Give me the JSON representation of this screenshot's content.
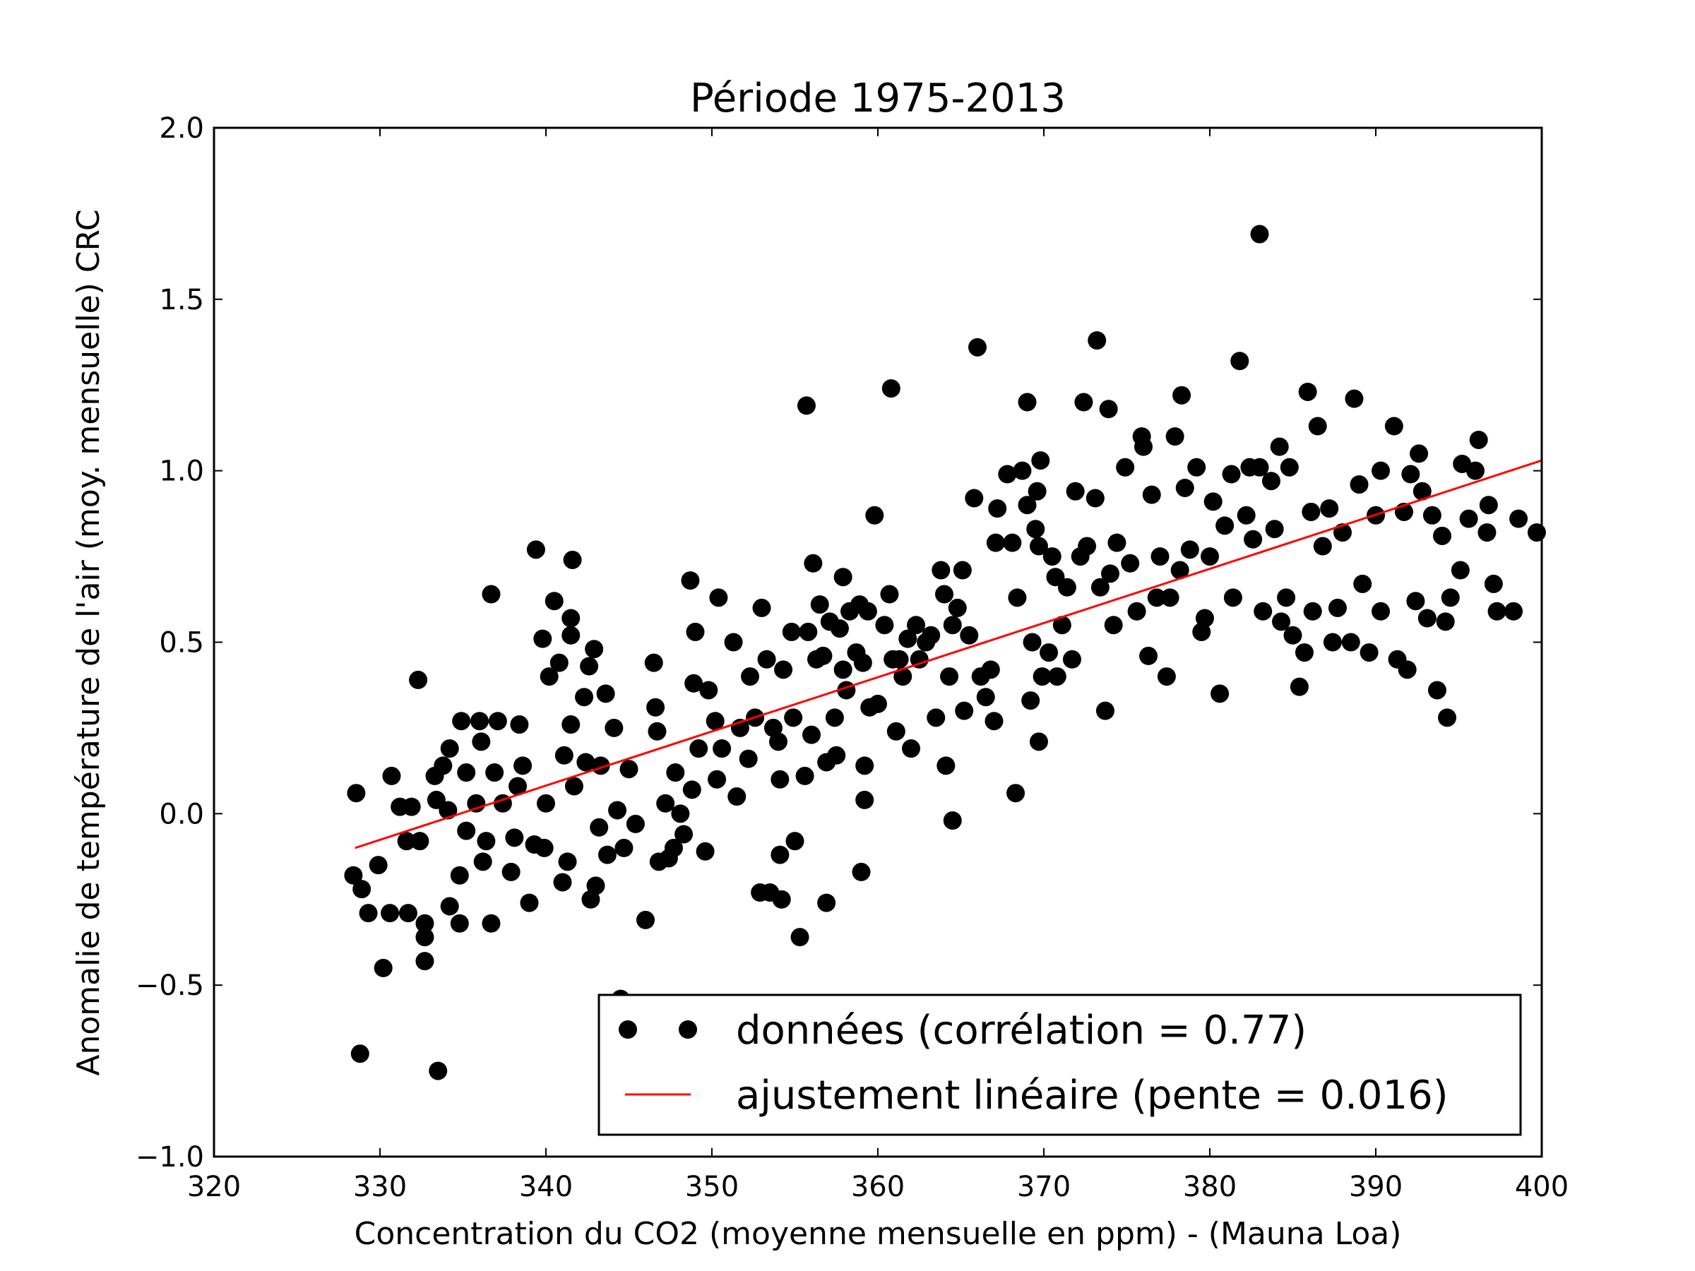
{
  "chart_data": {
    "type": "scatter",
    "title": "Période 1975-2013",
    "xlabel": "Concentration du CO2 (moyenne mensuelle en ppm) -  (Mauna Loa)",
    "ylabel": "Anomalie de température de l'air (moy. mensuelle) CRC",
    "xlim": [
      320,
      400
    ],
    "ylim": [
      -1.0,
      2.0
    ],
    "xticks": [
      "320",
      "330",
      "340",
      "350",
      "360",
      "370",
      "380",
      "390",
      "400"
    ],
    "yticks": [
      "−1.0",
      "−0.5",
      "0.0",
      "0.5",
      "1.0",
      "1.5",
      "2.0"
    ],
    "grid": false,
    "legend_position": "bottom-right",
    "colors": {
      "points": "#000000",
      "fit": "#ff0000"
    },
    "series": [
      {
        "name": "données (corrélation = 0.77)",
        "type": "scatter",
        "points": [
          [
            328.57,
            0.06
          ],
          [
            328.4,
            -0.18
          ],
          [
            328.9,
            -0.22
          ],
          [
            328.8,
            -0.7
          ],
          [
            333.5,
            -0.75
          ],
          [
            330.2,
            -0.45
          ],
          [
            332.7,
            -0.43
          ],
          [
            332.7,
            -0.36
          ],
          [
            329.9,
            -0.15
          ],
          [
            329.3,
            -0.29
          ],
          [
            330.6,
            -0.29
          ],
          [
            331.7,
            -0.29
          ],
          [
            332.7,
            -0.32
          ],
          [
            334.2,
            -0.27
          ],
          [
            334.8,
            -0.32
          ],
          [
            334.8,
            -0.18
          ],
          [
            332.3,
            0.39
          ],
          [
            330.7,
            0.11
          ],
          [
            331.2,
            0.02
          ],
          [
            331.9,
            0.02
          ],
          [
            331.6,
            -0.08
          ],
          [
            332.4,
            -0.08
          ],
          [
            333.3,
            0.11
          ],
          [
            333.8,
            0.14
          ],
          [
            334.2,
            0.19
          ],
          [
            333.4,
            0.04
          ],
          [
            334.1,
            0.01
          ],
          [
            334.9,
            0.27
          ],
          [
            335.2,
            0.12
          ],
          [
            335.2,
            -0.05
          ],
          [
            336.0,
            0.27
          ],
          [
            336.1,
            0.21
          ],
          [
            335.8,
            0.03
          ],
          [
            336.2,
            -0.14
          ],
          [
            336.4,
            -0.08
          ],
          [
            336.7,
            -0.32
          ],
          [
            336.7,
            0.64
          ],
          [
            337.1,
            0.27
          ],
          [
            336.9,
            0.12
          ],
          [
            337.4,
            0.03
          ],
          [
            337.9,
            -0.17
          ],
          [
            338.1,
            -0.07
          ],
          [
            338.4,
            0.26
          ],
          [
            338.6,
            0.14
          ],
          [
            338.3,
            0.08
          ],
          [
            339.0,
            -0.26
          ],
          [
            339.3,
            -0.09
          ],
          [
            339.4,
            0.77
          ],
          [
            339.8,
            0.51
          ],
          [
            340.2,
            0.4
          ],
          [
            340.0,
            0.03
          ],
          [
            339.9,
            -0.1
          ],
          [
            340.5,
            0.62
          ],
          [
            340.8,
            0.44
          ],
          [
            341.1,
            0.17
          ],
          [
            341.0,
            -0.2
          ],
          [
            341.3,
            -0.14
          ],
          [
            341.5,
            0.52
          ],
          [
            341.5,
            0.57
          ],
          [
            341.6,
            0.74
          ],
          [
            341.5,
            0.26
          ],
          [
            341.7,
            0.08
          ],
          [
            342.3,
            0.34
          ],
          [
            342.6,
            0.43
          ],
          [
            342.4,
            0.15
          ],
          [
            342.7,
            -0.25
          ],
          [
            342.9,
            0.48
          ],
          [
            343.0,
            -0.21
          ],
          [
            343.2,
            -0.04
          ],
          [
            343.3,
            0.14
          ],
          [
            343.6,
            0.35
          ],
          [
            343.7,
            -0.12
          ],
          [
            344.1,
            0.25
          ],
          [
            344.3,
            0.01
          ],
          [
            344.5,
            -0.54
          ],
          [
            344.7,
            -0.1
          ],
          [
            345.0,
            0.13
          ],
          [
            345.4,
            -0.03
          ],
          [
            346.0,
            -0.31
          ],
          [
            346.5,
            0.44
          ],
          [
            346.6,
            0.31
          ],
          [
            346.7,
            0.24
          ],
          [
            346.8,
            -0.14
          ],
          [
            347.2,
            0.03
          ],
          [
            347.4,
            -0.13
          ],
          [
            347.7,
            -0.1
          ],
          [
            347.8,
            0.12
          ],
          [
            348.1,
            0.0
          ],
          [
            348.3,
            -0.06
          ],
          [
            348.7,
            0.68
          ],
          [
            348.9,
            0.38
          ],
          [
            349.0,
            0.53
          ],
          [
            349.2,
            0.19
          ],
          [
            348.8,
            0.07
          ],
          [
            349.6,
            -0.11
          ],
          [
            349.8,
            0.36
          ],
          [
            350.2,
            0.27
          ],
          [
            350.4,
            0.63
          ],
          [
            350.6,
            0.19
          ],
          [
            350.3,
            0.1
          ],
          [
            351.3,
            0.5
          ],
          [
            351.5,
            0.05
          ],
          [
            351.7,
            0.25
          ],
          [
            352.2,
            0.16
          ],
          [
            352.3,
            0.4
          ],
          [
            352.6,
            0.28
          ],
          [
            352.9,
            -0.23
          ],
          [
            353.0,
            0.6
          ],
          [
            353.3,
            0.45
          ],
          [
            353.5,
            -0.23
          ],
          [
            353.7,
            0.25
          ],
          [
            354.0,
            0.21
          ],
          [
            354.1,
            -0.12
          ],
          [
            354.1,
            0.1
          ],
          [
            354.2,
            -0.25
          ],
          [
            354.3,
            0.42
          ],
          [
            354.8,
            0.53
          ],
          [
            354.9,
            0.28
          ],
          [
            355.0,
            -0.08
          ],
          [
            355.3,
            -0.36
          ],
          [
            355.6,
            0.11
          ],
          [
            355.7,
            1.19
          ],
          [
            355.8,
            0.53
          ],
          [
            356.0,
            0.23
          ],
          [
            356.1,
            0.73
          ],
          [
            356.3,
            0.45
          ],
          [
            356.5,
            0.61
          ],
          [
            356.7,
            0.46
          ],
          [
            356.9,
            -0.26
          ],
          [
            356.9,
            0.15
          ],
          [
            357.1,
            0.56
          ],
          [
            357.4,
            0.28
          ],
          [
            357.5,
            0.17
          ],
          [
            357.7,
            0.54
          ],
          [
            357.9,
            0.42
          ],
          [
            357.9,
            0.69
          ],
          [
            358.1,
            0.36
          ],
          [
            358.3,
            0.59
          ],
          [
            358.7,
            0.47
          ],
          [
            358.9,
            0.61
          ],
          [
            359.0,
            -0.17
          ],
          [
            359.1,
            0.44
          ],
          [
            359.2,
            0.14
          ],
          [
            359.2,
            0.04
          ],
          [
            359.4,
            0.59
          ],
          [
            359.5,
            0.31
          ],
          [
            359.8,
            0.87
          ],
          [
            360.0,
            0.32
          ],
          [
            360.4,
            0.55
          ],
          [
            360.7,
            0.64
          ],
          [
            360.8,
            1.24
          ],
          [
            360.9,
            0.45
          ],
          [
            361.1,
            0.24
          ],
          [
            361.3,
            0.45
          ],
          [
            361.5,
            0.4
          ],
          [
            361.8,
            0.51
          ],
          [
            362.0,
            0.19
          ],
          [
            362.3,
            0.55
          ],
          [
            362.5,
            0.45
          ],
          [
            362.9,
            0.5
          ],
          [
            363.2,
            0.52
          ],
          [
            363.5,
            0.28
          ],
          [
            363.8,
            0.71
          ],
          [
            364.0,
            0.64
          ],
          [
            364.1,
            0.14
          ],
          [
            364.3,
            0.4
          ],
          [
            364.5,
            0.55
          ],
          [
            364.5,
            -0.02
          ],
          [
            364.8,
            0.6
          ],
          [
            365.1,
            0.71
          ],
          [
            365.2,
            0.3
          ],
          [
            365.5,
            0.52
          ],
          [
            365.8,
            0.92
          ],
          [
            366.0,
            1.36
          ],
          [
            366.2,
            0.4
          ],
          [
            366.5,
            0.34
          ],
          [
            366.8,
            0.42
          ],
          [
            367.0,
            0.27
          ],
          [
            367.1,
            0.79
          ],
          [
            367.2,
            0.89
          ],
          [
            367.8,
            0.99
          ],
          [
            368.1,
            0.79
          ],
          [
            368.3,
            0.06
          ],
          [
            368.4,
            0.63
          ],
          [
            368.7,
            1.0
          ],
          [
            369.0,
            1.2
          ],
          [
            369.0,
            0.9
          ],
          [
            369.2,
            0.33
          ],
          [
            369.3,
            0.5
          ],
          [
            369.5,
            0.83
          ],
          [
            369.6,
            0.94
          ],
          [
            369.7,
            0.78
          ],
          [
            369.7,
            0.21
          ],
          [
            369.8,
            1.03
          ],
          [
            369.9,
            0.4
          ],
          [
            370.3,
            0.47
          ],
          [
            370.5,
            0.75
          ],
          [
            370.7,
            0.69
          ],
          [
            370.8,
            0.4
          ],
          [
            371.1,
            0.55
          ],
          [
            371.4,
            0.66
          ],
          [
            371.7,
            0.45
          ],
          [
            371.9,
            0.94
          ],
          [
            372.2,
            0.75
          ],
          [
            372.4,
            1.2
          ],
          [
            372.6,
            0.78
          ],
          [
            373.1,
            0.92
          ],
          [
            373.2,
            1.38
          ],
          [
            373.4,
            0.66
          ],
          [
            373.7,
            0.3
          ],
          [
            373.9,
            1.18
          ],
          [
            374.0,
            0.7
          ],
          [
            374.2,
            0.55
          ],
          [
            374.4,
            0.79
          ],
          [
            374.9,
            1.01
          ],
          [
            375.2,
            0.73
          ],
          [
            375.6,
            0.59
          ],
          [
            375.9,
            1.1
          ],
          [
            376.0,
            1.07
          ],
          [
            376.3,
            0.46
          ],
          [
            376.5,
            0.93
          ],
          [
            376.8,
            0.63
          ],
          [
            377.0,
            0.75
          ],
          [
            377.4,
            0.4
          ],
          [
            377.6,
            0.63
          ],
          [
            377.9,
            1.1
          ],
          [
            378.2,
            0.71
          ],
          [
            378.3,
            1.22
          ],
          [
            378.5,
            0.95
          ],
          [
            378.8,
            0.77
          ],
          [
            379.2,
            1.01
          ],
          [
            379.5,
            0.53
          ],
          [
            379.7,
            0.57
          ],
          [
            380.0,
            0.75
          ],
          [
            380.2,
            0.91
          ],
          [
            380.6,
            0.35
          ],
          [
            380.9,
            0.84
          ],
          [
            381.3,
            0.99
          ],
          [
            381.4,
            0.63
          ],
          [
            381.8,
            1.32
          ],
          [
            382.2,
            0.87
          ],
          [
            382.4,
            1.01
          ],
          [
            382.6,
            0.8
          ],
          [
            383.0,
            1.69
          ],
          [
            383.0,
            1.01
          ],
          [
            383.2,
            0.59
          ],
          [
            383.7,
            0.97
          ],
          [
            383.9,
            0.83
          ],
          [
            384.2,
            1.07
          ],
          [
            384.3,
            0.56
          ],
          [
            384.6,
            0.63
          ],
          [
            384.8,
            1.01
          ],
          [
            385.0,
            0.52
          ],
          [
            385.4,
            0.37
          ],
          [
            385.7,
            0.47
          ],
          [
            385.9,
            1.23
          ],
          [
            386.1,
            0.88
          ],
          [
            386.2,
            0.59
          ],
          [
            386.5,
            1.13
          ],
          [
            386.8,
            0.78
          ],
          [
            387.2,
            0.89
          ],
          [
            387.4,
            0.5
          ],
          [
            387.7,
            0.6
          ],
          [
            388.0,
            0.82
          ],
          [
            388.5,
            0.5
          ],
          [
            388.7,
            1.21
          ],
          [
            389.0,
            0.96
          ],
          [
            389.2,
            0.67
          ],
          [
            389.6,
            0.47
          ],
          [
            390.0,
            0.87
          ],
          [
            390.3,
            1.0
          ],
          [
            390.3,
            0.59
          ],
          [
            391.1,
            1.13
          ],
          [
            391.3,
            0.45
          ],
          [
            391.7,
            0.88
          ],
          [
            391.9,
            0.42
          ],
          [
            392.1,
            0.99
          ],
          [
            392.4,
            0.62
          ],
          [
            392.6,
            1.05
          ],
          [
            392.8,
            0.94
          ],
          [
            393.1,
            0.57
          ],
          [
            393.4,
            0.87
          ],
          [
            393.7,
            0.36
          ],
          [
            394.0,
            0.81
          ],
          [
            394.2,
            0.56
          ],
          [
            394.3,
            0.28
          ],
          [
            394.5,
            0.63
          ],
          [
            395.1,
            0.71
          ],
          [
            395.2,
            1.02
          ],
          [
            395.6,
            0.86
          ],
          [
            396.0,
            1.0
          ],
          [
            396.2,
            1.09
          ],
          [
            396.7,
            0.82
          ],
          [
            396.8,
            0.9
          ],
          [
            397.1,
            0.67
          ],
          [
            397.3,
            0.59
          ],
          [
            398.3,
            0.59
          ],
          [
            398.6,
            0.86
          ],
          [
            399.7,
            0.82
          ]
        ]
      },
      {
        "name": "ajustement linéaire (pente = 0.016)",
        "type": "line",
        "points": [
          [
            328.5,
            -0.1
          ],
          [
            400,
            1.03
          ]
        ]
      }
    ]
  }
}
